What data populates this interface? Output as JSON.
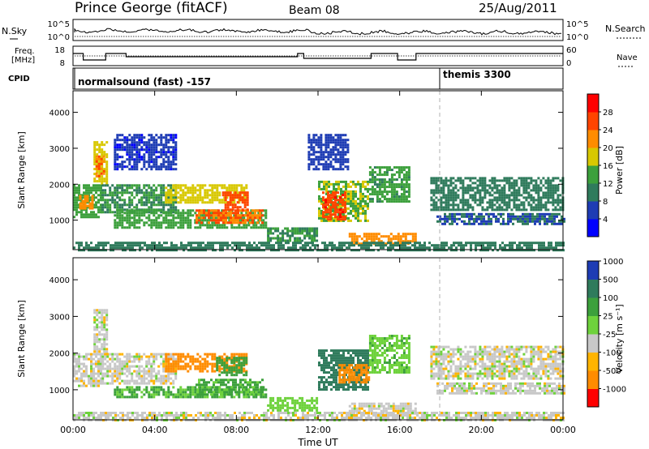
{
  "header": {
    "station": "Prince George (fitACF)",
    "beam": "Beam 08",
    "date": "25/Aug/2011"
  },
  "left_labels": {
    "nsky": "N.Sky",
    "freq": "Freq.",
    "freq_unit": "[MHz]",
    "cpid": "CPID"
  },
  "right_labels": {
    "nsearch": "N.Search",
    "nave": "Nave"
  },
  "noise_panel": {
    "y_ticks": [
      "10^5",
      "10^0"
    ],
    "right_ticks": [
      "10^5",
      "10^0"
    ]
  },
  "freq_panel": {
    "y_ticks": [
      "18",
      "8"
    ],
    "right_ticks": [
      "60",
      "0"
    ]
  },
  "cpid_panel": {
    "segments": [
      {
        "label": "normalsound (fast) -157",
        "start_hour": 0
      },
      {
        "label": "themis 3300",
        "start_hour": 18
      }
    ]
  },
  "colors": {
    "power": [
      "#0000ff",
      "#1e3cb4",
      "#2f7b5c",
      "#3ca03c",
      "#d8c800",
      "#ff8c00",
      "#ff4400",
      "#ff0000"
    ],
    "velocity": [
      "#1e3cb4",
      "#3c6eb4",
      "#2f7b5c",
      "#6ed23c",
      "#c8c8c8",
      "#ffb400",
      "#ff8c00",
      "#ff0000"
    ]
  },
  "chart_data": [
    {
      "type": "heatmap",
      "name": "power",
      "ylabel": "Slant Range [km]",
      "colorbar_label": "Power [dB]",
      "colorbar_ticks": [
        "4",
        "8",
        "12",
        "16",
        "20",
        "24",
        "28"
      ],
      "ylim": [
        180,
        4600
      ],
      "y_ticks": [
        "1000",
        "2000",
        "3000",
        "4000"
      ],
      "y_tick_values": [
        1000,
        2000,
        3000,
        4000
      ],
      "xlim": [
        0,
        24
      ],
      "regions": [
        {
          "t0": 0.0,
          "t1": 1.4,
          "r0": 1100,
          "r1": 2000,
          "value": 14
        },
        {
          "t0": 0.3,
          "t1": 1.0,
          "r0": 1300,
          "r1": 1700,
          "value": 22
        },
        {
          "t0": 1.0,
          "t1": 1.6,
          "r0": 2000,
          "r1": 3200,
          "value": 18
        },
        {
          "t0": 1.1,
          "t1": 1.5,
          "r0": 2200,
          "r1": 2800,
          "value": 24
        },
        {
          "t0": 1.4,
          "t1": 5.0,
          "r0": 1200,
          "r1": 2000,
          "value": 12
        },
        {
          "t0": 2.0,
          "t1": 9.5,
          "r0": 800,
          "r1": 1300,
          "value": 14
        },
        {
          "t0": 4.5,
          "t1": 8.5,
          "r0": 1500,
          "r1": 2000,
          "value": 18
        },
        {
          "t0": 6.0,
          "t1": 9.3,
          "r0": 900,
          "r1": 1300,
          "value": 24
        },
        {
          "t0": 7.3,
          "t1": 8.5,
          "r0": 1300,
          "r1": 1800,
          "value": 26
        },
        {
          "t0": 2.0,
          "t1": 5.0,
          "r0": 2400,
          "r1": 3400,
          "value": 5
        },
        {
          "t0": 9.5,
          "t1": 12.0,
          "r0": 450,
          "r1": 800,
          "value": 12
        },
        {
          "t0": 12.0,
          "t1": 14.5,
          "r0": 1000,
          "r1": 2100,
          "value": 16
        },
        {
          "t0": 12.2,
          "t1": 13.3,
          "r0": 1000,
          "r1": 1800,
          "value": 27
        },
        {
          "t0": 14.5,
          "t1": 16.5,
          "r0": 1500,
          "r1": 2500,
          "value": 13
        },
        {
          "t0": 13.5,
          "t1": 16.8,
          "r0": 350,
          "r1": 650,
          "value": 22
        },
        {
          "t0": 11.5,
          "t1": 13.5,
          "r0": 2400,
          "r1": 3400,
          "value": 6
        },
        {
          "t0": 17.5,
          "t1": 24.0,
          "r0": 1300,
          "r1": 2200,
          "value": 10
        },
        {
          "t0": 17.8,
          "t1": 24.0,
          "r0": 900,
          "r1": 1200,
          "value": 8
        },
        {
          "t0": 0.0,
          "t1": 24.0,
          "r0": 180,
          "r1": 400,
          "value": 10
        }
      ]
    },
    {
      "type": "heatmap",
      "name": "velocity",
      "ylabel": "Slant Range [km]",
      "colorbar_label": "Velocity [m s⁻¹]",
      "colorbar_ticks": [
        "-1000",
        "-500",
        "-100",
        "-25",
        "25",
        "100",
        "500",
        "1000"
      ],
      "ylim": [
        180,
        4600
      ],
      "y_ticks": [
        "1000",
        "2000",
        "3000",
        "4000"
      ],
      "y_tick_values": [
        1000,
        2000,
        3000,
        4000
      ],
      "xlim": [
        0,
        24
      ],
      "regions": [
        {
          "t0": 0.0,
          "t1": 1.4,
          "r0": 1100,
          "r1": 2000,
          "value": 0
        },
        {
          "t0": 1.0,
          "t1": 1.6,
          "r0": 2000,
          "r1": 3200,
          "value": 0
        },
        {
          "t0": 1.4,
          "t1": 5.0,
          "r0": 1200,
          "r1": 2000,
          "value": 0
        },
        {
          "t0": 4.5,
          "t1": 8.5,
          "r0": 1500,
          "r1": 2000,
          "value": -150
        },
        {
          "t0": 6.0,
          "t1": 9.3,
          "r0": 900,
          "r1": 1300,
          "value": 120
        },
        {
          "t0": 7.0,
          "t1": 8.5,
          "r0": 1400,
          "r1": 1900,
          "value": 350
        },
        {
          "t0": 2.0,
          "t1": 9.5,
          "r0": 800,
          "r1": 1100,
          "value": 110
        },
        {
          "t0": 9.5,
          "t1": 12.0,
          "r0": 450,
          "r1": 800,
          "value": 60
        },
        {
          "t0": 12.0,
          "t1": 14.5,
          "r0": 1000,
          "r1": 2100,
          "value": 600
        },
        {
          "t0": 13.0,
          "t1": 14.5,
          "r0": 1200,
          "r1": 1700,
          "value": -300
        },
        {
          "t0": 14.5,
          "t1": 16.5,
          "r0": 1500,
          "r1": 2500,
          "value": 80
        },
        {
          "t0": 13.5,
          "t1": 16.8,
          "r0": 350,
          "r1": 650,
          "value": 0
        },
        {
          "t0": 17.5,
          "t1": 24.0,
          "r0": 1300,
          "r1": 2200,
          "value": 0
        },
        {
          "t0": 17.8,
          "t1": 24.0,
          "r0": 900,
          "r1": 1200,
          "value": 0
        },
        {
          "t0": 0.0,
          "t1": 24.0,
          "r0": 180,
          "r1": 400,
          "value": 0
        }
      ]
    }
  ],
  "x_axis": {
    "label": "Time UT",
    "ticks": [
      "00:00",
      "04:00",
      "08:00",
      "12:00",
      "16:00",
      "20:00",
      "00:00"
    ],
    "tick_hours": [
      0,
      4,
      8,
      12,
      16,
      20,
      24
    ]
  }
}
